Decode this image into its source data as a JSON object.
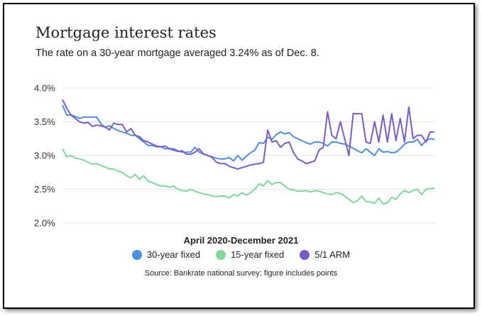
{
  "chart_data": {
    "type": "line",
    "title": "Mortgage interest rates",
    "subtitle": "The rate on a 30-year mortgage averaged 3.24% as of Dec. 8.",
    "xlabel": "April 2020-December 2021",
    "ylabel": "",
    "ylim": [
      2.0,
      4.0
    ],
    "yticks": [
      "2.0%",
      "2.5%",
      "3.0%",
      "3.5%",
      "4.0%"
    ],
    "grid": "horizontal",
    "legend_position": "bottom",
    "source": "Source: Bankrate national survey; figure includes points",
    "series": [
      {
        "name": "30-year fixed",
        "color": "#4a90e2",
        "values": [
          3.75,
          3.6,
          3.6,
          3.58,
          3.55,
          3.57,
          3.57,
          3.57,
          3.57,
          3.47,
          3.42,
          3.44,
          3.4,
          3.37,
          3.35,
          3.33,
          3.3,
          3.3,
          3.25,
          3.2,
          3.15,
          3.15,
          3.13,
          3.13,
          3.1,
          3.1,
          3.1,
          3.07,
          3.05,
          3.05,
          3.05,
          3.12,
          3.05,
          3.02,
          3.0,
          2.98,
          2.96,
          2.95,
          2.95,
          2.97,
          2.92,
          3.0,
          2.93,
          2.99,
          3.04,
          3.08,
          3.19,
          3.18,
          3.27,
          3.24,
          3.31,
          3.35,
          3.32,
          3.34,
          3.28,
          3.25,
          3.22,
          3.19,
          3.17,
          3.2,
          3.2,
          3.18,
          3.14,
          3.2,
          3.2,
          3.18,
          3.17,
          3.14,
          3.11,
          3.07,
          3.04,
          3.1,
          3.05,
          3.0,
          3.1,
          3.05,
          3.06,
          3.04,
          3.05,
          3.1,
          3.17,
          3.2,
          3.2,
          3.24,
          3.15,
          3.22,
          3.25,
          3.24
        ]
      },
      {
        "name": "15-year fixed",
        "color": "#7dd99b",
        "values": [
          3.1,
          2.98,
          3.0,
          2.96,
          2.95,
          2.93,
          2.9,
          2.87,
          2.88,
          2.85,
          2.83,
          2.8,
          2.8,
          2.77,
          2.75,
          2.7,
          2.67,
          2.72,
          2.65,
          2.7,
          2.62,
          2.6,
          2.57,
          2.55,
          2.55,
          2.53,
          2.55,
          2.5,
          2.48,
          2.47,
          2.5,
          2.47,
          2.45,
          2.43,
          2.42,
          2.4,
          2.39,
          2.4,
          2.4,
          2.37,
          2.42,
          2.4,
          2.45,
          2.41,
          2.45,
          2.5,
          2.58,
          2.55,
          2.63,
          2.57,
          2.6,
          2.6,
          2.55,
          2.5,
          2.49,
          2.47,
          2.47,
          2.48,
          2.46,
          2.48,
          2.47,
          2.45,
          2.43,
          2.42,
          2.45,
          2.44,
          2.4,
          2.35,
          2.3,
          2.33,
          2.4,
          2.32,
          2.31,
          2.29,
          2.37,
          2.28,
          2.3,
          2.38,
          2.35,
          2.43,
          2.48,
          2.45,
          2.48,
          2.5,
          2.42,
          2.5,
          2.51,
          2.52
        ]
      },
      {
        "name": "5/1 ARM",
        "color": "#7a5cc8",
        "values": [
          3.83,
          3.7,
          3.6,
          3.55,
          3.5,
          3.48,
          3.49,
          3.43,
          3.45,
          3.44,
          3.42,
          3.38,
          3.48,
          3.46,
          3.46,
          3.35,
          3.4,
          3.3,
          3.28,
          3.22,
          3.2,
          3.17,
          3.14,
          3.13,
          3.14,
          3.1,
          3.08,
          3.06,
          3.07,
          3.02,
          3.02,
          3.05,
          3.1,
          3.02,
          3.0,
          2.97,
          2.9,
          2.88,
          2.88,
          2.84,
          2.82,
          2.8,
          2.82,
          2.84,
          2.86,
          2.87,
          2.88,
          2.9,
          3.38,
          3.2,
          3.22,
          3.12,
          3.18,
          3.2,
          3.05,
          2.95,
          2.92,
          2.88,
          2.9,
          2.92,
          3.08,
          3.12,
          3.65,
          3.3,
          3.25,
          3.5,
          3.25,
          3.0,
          3.62,
          3.62,
          3.62,
          3.2,
          3.18,
          3.5,
          3.2,
          3.6,
          3.2,
          3.62,
          3.22,
          3.55,
          3.2,
          3.72,
          3.25,
          3.3,
          3.3,
          3.2,
          3.35,
          3.35
        ]
      }
    ]
  }
}
